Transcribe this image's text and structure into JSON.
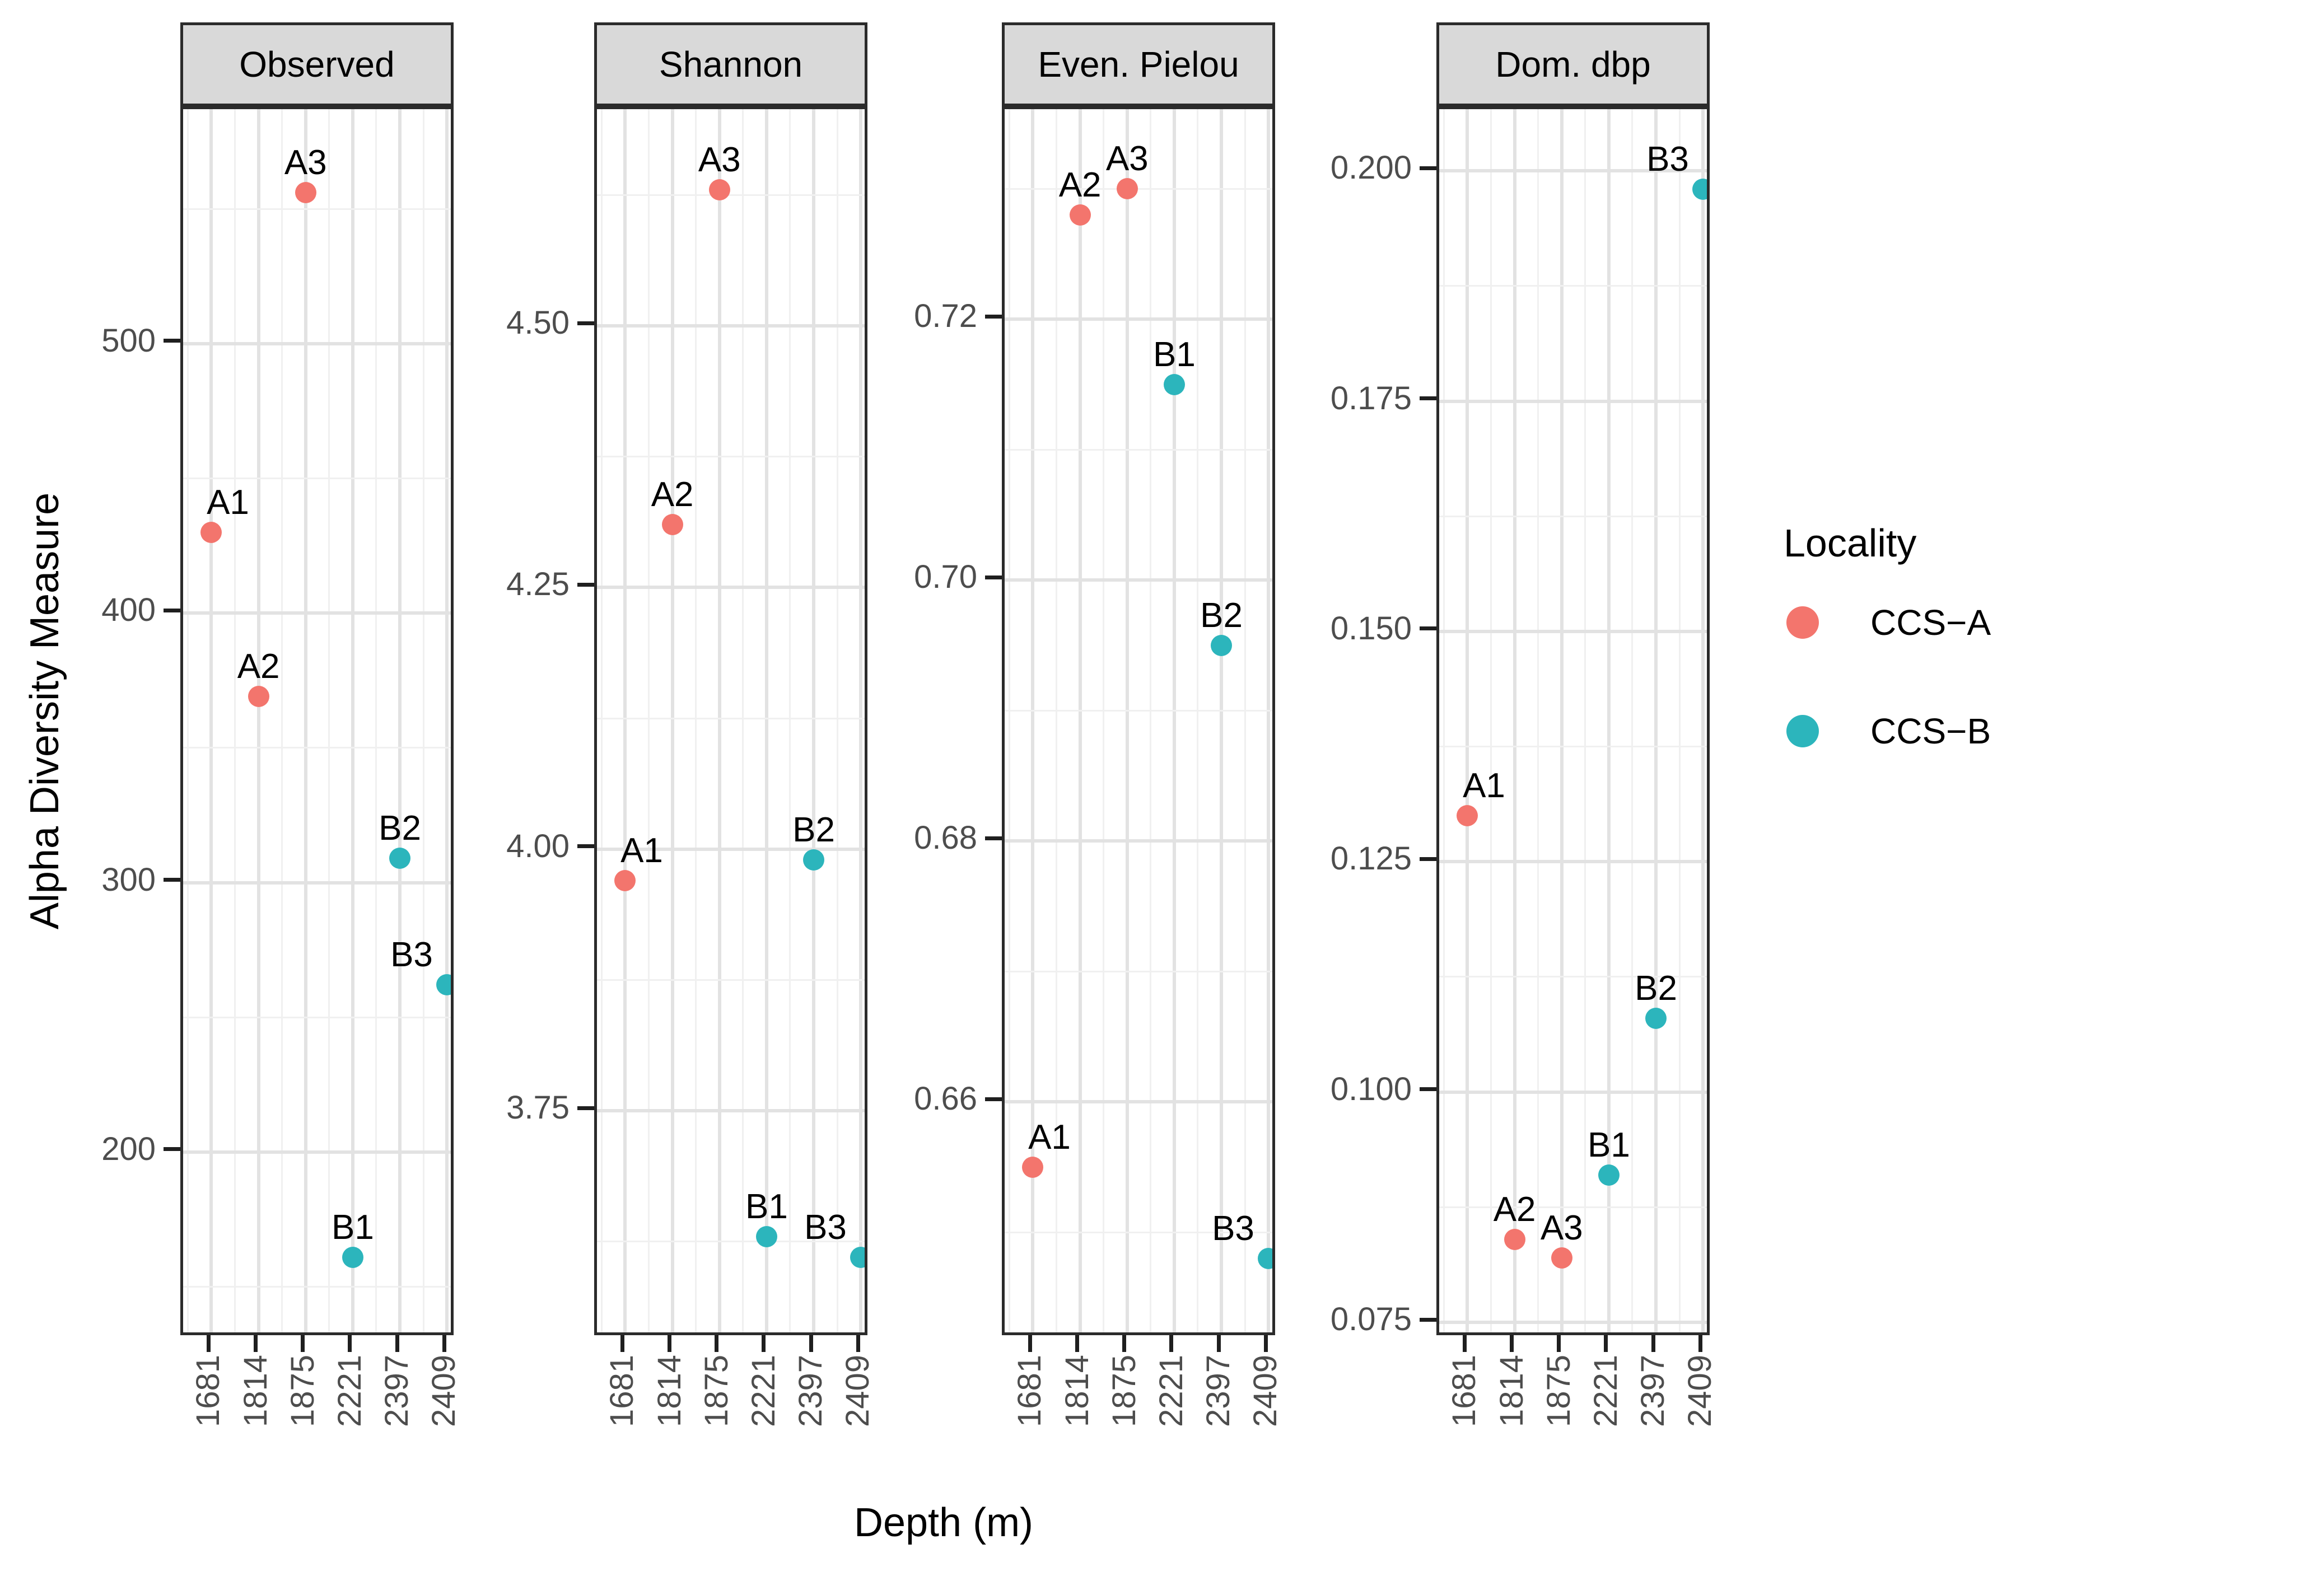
{
  "figure": {
    "y_axis_title": "Alpha Diversity Measure",
    "x_axis_title": "Depth (m)",
    "legend": {
      "title": "Locality",
      "items": [
        {
          "label": "CCS−A",
          "color": "#F3756D"
        },
        {
          "label": "CCS−B",
          "color": "#2CB5BC"
        }
      ]
    }
  },
  "chart_data": {
    "type": "scatter",
    "faceted": true,
    "facet_scales": "free_y",
    "x_type": "discrete",
    "xlabel": "Depth (m)",
    "ylabel": "Alpha Diversity Measure",
    "categories": [
      "1681",
      "1814",
      "1875",
      "2221",
      "2397",
      "2409"
    ],
    "grid": "major and minor, light gray on white panel",
    "legend_position": "right",
    "groups": [
      {
        "name": "CCS−A",
        "color": "#F3756D"
      },
      {
        "name": "CCS−B",
        "color": "#2CB5BC"
      }
    ],
    "facets": [
      {
        "title": "Observed",
        "ylim": [
          131,
          587
        ],
        "yticks": [
          200,
          300,
          400,
          500
        ],
        "ytick_labels": [
          "200",
          "300",
          "400",
          "500"
        ],
        "points": [
          {
            "label": "A1",
            "depth": "1681",
            "value": 430,
            "group": "CCS−A"
          },
          {
            "label": "A2",
            "depth": "1814",
            "value": 369,
            "group": "CCS−A"
          },
          {
            "label": "A3",
            "depth": "1875",
            "value": 556,
            "group": "CCS−A"
          },
          {
            "label": "B1",
            "depth": "2221",
            "value": 161,
            "group": "CCS−B"
          },
          {
            "label": "B2",
            "depth": "2397",
            "value": 309,
            "group": "CCS−B"
          },
          {
            "label": "B3",
            "depth": "2409",
            "value": 262,
            "group": "CCS−B"
          }
        ]
      },
      {
        "title": "Shannon",
        "ylim": [
          3.533,
          4.707
        ],
        "yticks": [
          3.75,
          4.0,
          4.25,
          4.5
        ],
        "ytick_labels": [
          "3.75",
          "4.00",
          "4.25",
          "4.50"
        ],
        "points": [
          {
            "label": "A1",
            "depth": "1681",
            "value": 3.97,
            "group": "CCS−A"
          },
          {
            "label": "A2",
            "depth": "1814",
            "value": 4.31,
            "group": "CCS−A"
          },
          {
            "label": "A3",
            "depth": "1875",
            "value": 4.63,
            "group": "CCS−A"
          },
          {
            "label": "B1",
            "depth": "2221",
            "value": 3.63,
            "group": "CCS−B"
          },
          {
            "label": "B2",
            "depth": "2397",
            "value": 3.99,
            "group": "CCS−B"
          },
          {
            "label": "B3",
            "depth": "2409",
            "value": 3.61,
            "group": "CCS−B"
          }
        ]
      },
      {
        "title": "Even. Pielou",
        "ylim": [
          0.6419,
          0.7361
        ],
        "yticks": [
          0.66,
          0.68,
          0.7,
          0.72
        ],
        "ytick_labels": [
          "0.66",
          "0.68",
          "0.70",
          "0.72"
        ],
        "points": [
          {
            "label": "A1",
            "depth": "1681",
            "value": 0.655,
            "group": "CCS−A"
          },
          {
            "label": "A2",
            "depth": "1814",
            "value": 0.728,
            "group": "CCS−A"
          },
          {
            "label": "A3",
            "depth": "1875",
            "value": 0.73,
            "group": "CCS−A"
          },
          {
            "label": "B1",
            "depth": "2221",
            "value": 0.715,
            "group": "CCS−B"
          },
          {
            "label": "B2",
            "depth": "2397",
            "value": 0.695,
            "group": "CCS−B"
          },
          {
            "label": "B3",
            "depth": "2409",
            "value": 0.648,
            "group": "CCS−B"
          }
        ]
      },
      {
        "title": "Dom. dbp",
        "ylim": [
          0.0733,
          0.2067
        ],
        "yticks": [
          0.075,
          0.1,
          0.125,
          0.15,
          0.175,
          0.2
        ],
        "ytick_labels": [
          "0.075",
          "0.100",
          "0.125",
          "0.150",
          "0.175",
          "0.200"
        ],
        "points": [
          {
            "label": "A1",
            "depth": "1681",
            "value": 0.13,
            "group": "CCS−A"
          },
          {
            "label": "A2",
            "depth": "1814",
            "value": 0.084,
            "group": "CCS−A"
          },
          {
            "label": "A3",
            "depth": "1875",
            "value": 0.082,
            "group": "CCS−A"
          },
          {
            "label": "B1",
            "depth": "2221",
            "value": 0.091,
            "group": "CCS−B"
          },
          {
            "label": "B2",
            "depth": "2397",
            "value": 0.108,
            "group": "CCS−B"
          },
          {
            "label": "B3",
            "depth": "2409",
            "value": 0.198,
            "group": "CCS−B"
          }
        ]
      }
    ]
  }
}
